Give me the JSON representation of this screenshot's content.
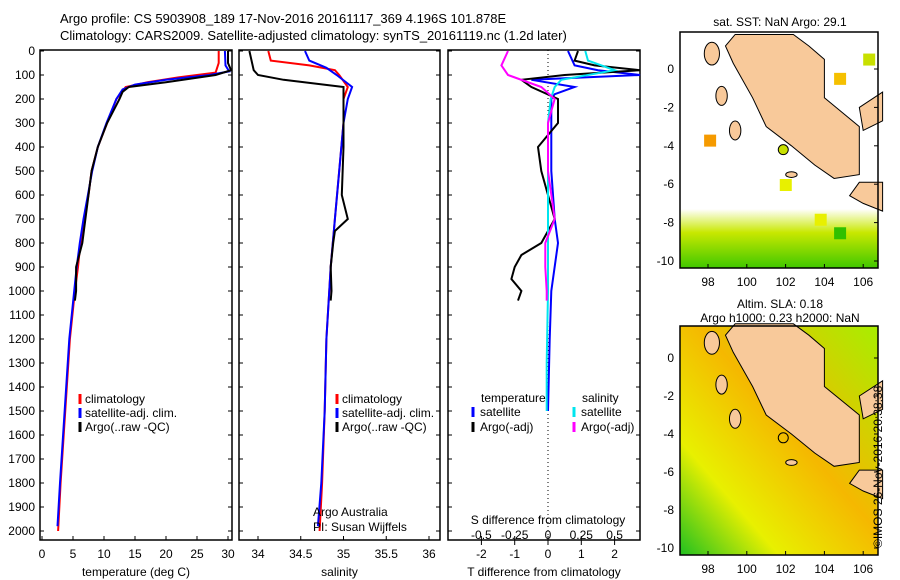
{
  "header": {
    "line1": "Argo profile: CS 5903908_189 17-Nov-2016 20161117_369 4.196S 101.878E",
    "line2": "Climatology: CARS2009. Satellite-adjusted climatology: synTS_20161119.nc (1.2d later)"
  },
  "colors": {
    "clim": "#ff0000",
    "sat": "#0000ff",
    "argo": "#000000",
    "sal_sat": "#00e5ee",
    "sal_argo": "#ff00ff",
    "land": "#f8c99a"
  },
  "chart_data": [
    {
      "type": "line",
      "id": "temperature",
      "xlabel": "temperature (deg C)",
      "ylabel": "depth",
      "xlim": [
        -1,
        31.5
      ],
      "ylim": [
        2050,
        0
      ],
      "xticks": [
        "0",
        "5",
        "10",
        "15",
        "20",
        "25",
        "30"
      ],
      "yticks": [
        "0",
        "100",
        "200",
        "300",
        "400",
        "500",
        "600",
        "700",
        "800",
        "900",
        "1000",
        "1100",
        "1200",
        "1300",
        "1400",
        "1500",
        "1600",
        "1700",
        "1800",
        "1900",
        "2000"
      ],
      "legend": [
        "climatology",
        "satellite-adj. clim.",
        "Argo(..raw -QC)"
      ],
      "series": [
        {
          "name": "climatology",
          "depth": [
            0,
            50,
            90,
            110,
            130,
            150,
            200,
            300,
            400,
            500,
            600,
            700,
            800,
            900,
            1000,
            1200,
            1400,
            1600,
            1800,
            2000
          ],
          "values": [
            28.5,
            28.5,
            28,
            22,
            17,
            13.5,
            12,
            10.5,
            9,
            8,
            7.5,
            6.8,
            6.2,
            5.8,
            5.3,
            4.5,
            4,
            3.5,
            3,
            2.6
          ]
        },
        {
          "name": "satellite-adj. clim.",
          "depth": [
            0,
            60,
            85,
            100,
            120,
            140,
            160,
            200,
            300,
            400,
            500,
            600,
            700,
            800,
            900,
            1000,
            1200,
            1400,
            1600,
            1800,
            1980
          ],
          "values": [
            29.5,
            29.6,
            30.2,
            27,
            20,
            15,
            13,
            12,
            10.4,
            9,
            8.1,
            7.4,
            6.7,
            6.1,
            5.6,
            5.2,
            4.4,
            3.9,
            3.4,
            2.9,
            2.5
          ]
        },
        {
          "name": "Argo(..raw -QC)",
          "depth": [
            0,
            50,
            80,
            100,
            130,
            150,
            170,
            200,
            300,
            400,
            500,
            600,
            700,
            800,
            850,
            900,
            1000,
            1040
          ],
          "values": [
            30,
            30,
            30.5,
            28,
            20,
            14,
            13,
            12.5,
            10.5,
            9,
            8,
            7.5,
            7,
            6.5,
            6,
            5.5,
            5.5,
            5.3
          ]
        }
      ]
    },
    {
      "type": "line",
      "id": "salinity",
      "xlabel": "salinity",
      "xlim": [
        33.8,
        36.1
      ],
      "ylim": [
        2050,
        0
      ],
      "xticks": [
        "34",
        "34.5",
        "35",
        "35.5",
        "36"
      ],
      "legend": [
        "climatology",
        "satellite-adj. clim.",
        "Argo(..raw -QC)"
      ],
      "annotation": [
        "Argo Australia",
        "PI: Susan Wijffels"
      ],
      "series": [
        {
          "name": "climatology",
          "depth": [
            0,
            40,
            60,
            80,
            100,
            150,
            200,
            300,
            500,
            700,
            900,
            1200,
            1500,
            1800,
            2000
          ],
          "values": [
            34.12,
            34.15,
            34.6,
            34.9,
            34.95,
            35.05,
            35.0,
            35.0,
            34.95,
            34.9,
            34.85,
            34.8,
            34.78,
            34.75,
            34.72
          ]
        },
        {
          "name": "satellite-adj. clim.",
          "depth": [
            0,
            40,
            70,
            100,
            150,
            200,
            300,
            500,
            700,
            900,
            1200,
            1500,
            1800,
            1980
          ],
          "values": [
            34.55,
            34.6,
            34.8,
            34.92,
            35.1,
            35.05,
            35.0,
            34.95,
            34.9,
            34.85,
            34.8,
            34.78,
            34.74,
            34.7
          ]
        },
        {
          "name": "Argo(..raw -QC)",
          "depth": [
            0,
            80,
            100,
            120,
            150,
            200,
            400,
            600,
            700,
            750,
            800,
            900,
            1000,
            1040
          ],
          "values": [
            33.9,
            33.95,
            34.0,
            34.3,
            35.0,
            35.0,
            35.0,
            34.98,
            35.05,
            34.9,
            34.88,
            34.85,
            34.86,
            34.85
          ]
        }
      ]
    },
    {
      "type": "line",
      "id": "difference",
      "xlabel": "T difference from climatology",
      "x2label": "S difference from climatology",
      "xlim": [
        -3,
        3
      ],
      "ylim": [
        2050,
        0
      ],
      "xticks": [
        "-2",
        "-1",
        "0",
        "1",
        "2"
      ],
      "x2ticks": [
        "-0.5",
        "-0.25",
        "0",
        "0.25",
        "0.5"
      ],
      "legend_titles": [
        "temperature",
        "salinity"
      ],
      "legend": [
        "satellite",
        "Argo(-adj)",
        "satellite",
        "Argo(-adj)"
      ],
      "series": [
        {
          "name": "T satellite",
          "depth": [
            0,
            60,
            80,
            100,
            120,
            150,
            180,
            200,
            300,
            500,
            700,
            800,
            1000,
            1200,
            1500
          ],
          "values": [
            0.6,
            0.8,
            1.5,
            3,
            -0.5,
            0.8,
            0.2,
            0.1,
            0.1,
            0.1,
            0.2,
            0.3,
            0.1,
            0.05,
            0.0
          ]
        },
        {
          "name": "T Argo(-adj)",
          "depth": [
            0,
            40,
            60,
            80,
            100,
            120,
            150,
            200,
            300,
            400,
            500,
            600,
            700,
            800,
            850,
            900,
            950,
            1000,
            1040
          ],
          "values": [
            0.9,
            0.8,
            1.4,
            3,
            0.5,
            -0.8,
            -0.5,
            0.3,
            0.3,
            -0.3,
            -0.2,
            0,
            0.2,
            -0.2,
            -0.8,
            -1.0,
            -1.1,
            -0.8,
            -0.9
          ]
        },
        {
          "name": "S satellite",
          "depth": [
            0,
            40,
            80,
            120,
            150,
            200,
            300,
            500,
            700,
            1000,
            1300,
            1500
          ],
          "values": [
            0.28,
            0.3,
            0.5,
            0.1,
            0.05,
            0.02,
            0.0,
            0.0,
            0.0,
            0.0,
            -0.01,
            -0.01
          ]
        },
        {
          "name": "S Argo(-adj)",
          "depth": [
            0,
            60,
            100,
            150,
            200,
            300,
            500,
            700,
            800,
            900,
            1000,
            1040
          ],
          "values": [
            -0.3,
            -0.35,
            -0.3,
            -0.05,
            0.05,
            0.0,
            0.0,
            0.05,
            -0.02,
            -0.02,
            -0.01,
            -0.01
          ]
        }
      ]
    }
  ],
  "map1": {
    "title": "sat. SST: NaN Argo: 29.1",
    "xticks": [
      "98",
      "100",
      "102",
      "104",
      "106"
    ],
    "yticks": [
      "0",
      "-2",
      "-4",
      "-6",
      "-8",
      "-10"
    ]
  },
  "map2": {
    "title1": "Altim. SLA: 0.18",
    "title2": "Argo h1000: 0.23 h2000: NaN",
    "xticks": [
      "98",
      "100",
      "102",
      "104",
      "106"
    ],
    "yticks": [
      "0",
      "-2",
      "-4",
      "-6",
      "-8",
      "-10"
    ]
  },
  "footer": {
    "credit": "©IMOS 26-Nov-2016 20:38:38"
  }
}
